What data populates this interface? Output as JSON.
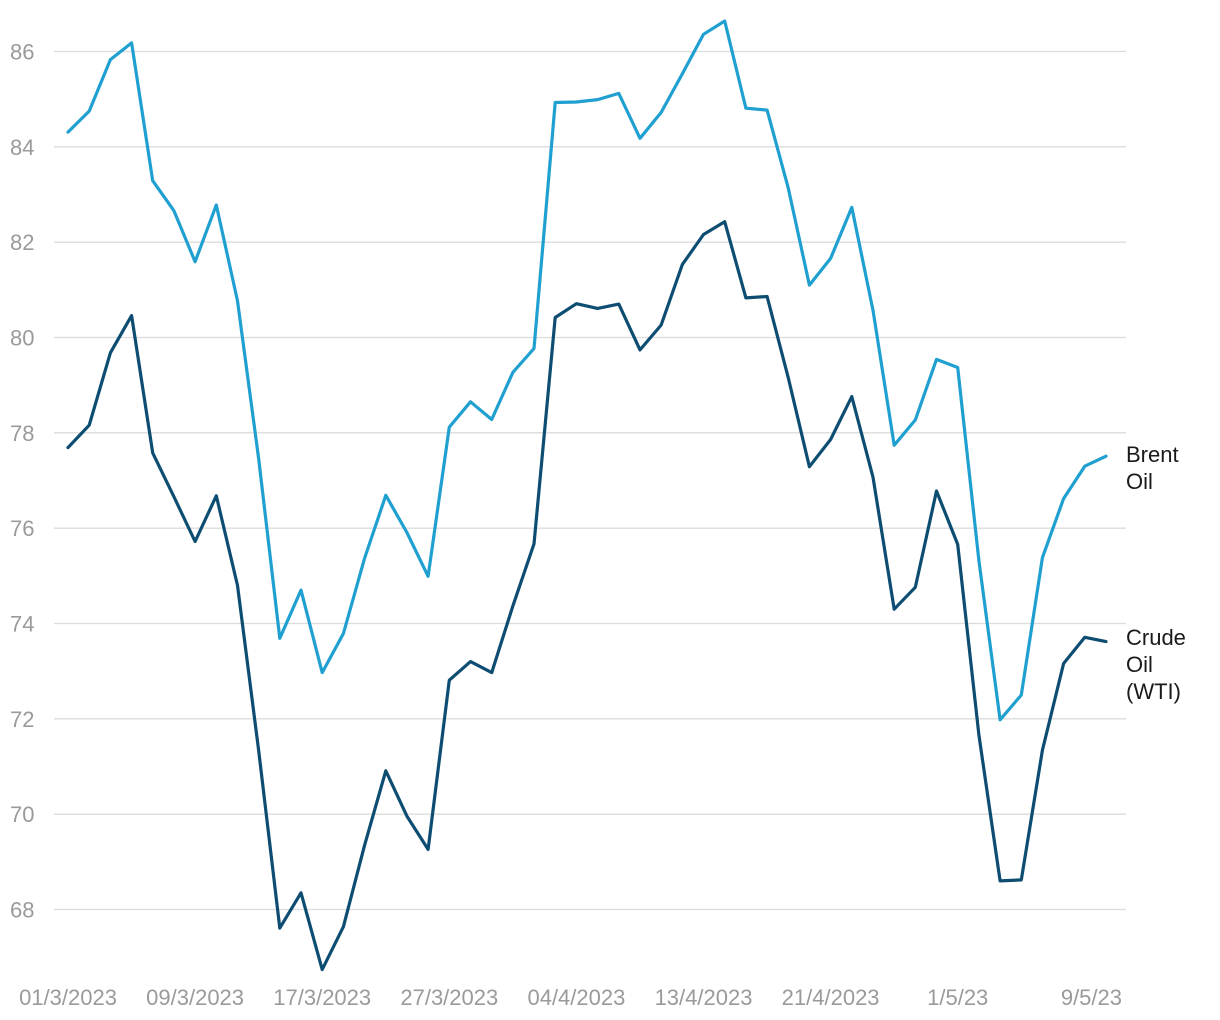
{
  "chart_data": {
    "type": "line",
    "title": "",
    "xlabel": "",
    "ylabel": "",
    "ylim": [
      66.7,
      86.9
    ],
    "y_ticks": [
      68,
      70,
      72,
      74,
      76,
      78,
      80,
      82,
      84,
      86
    ],
    "grid": "horizontal",
    "x_tick_labels": [
      "01/3/2023",
      "09/3/2023",
      "17/3/2023",
      "27/3/2023",
      "04/4/2023",
      "13/4/2023",
      "21/4/2023",
      "1/5/23",
      "9/5/23"
    ],
    "x_tick_index": [
      0,
      6,
      12,
      18,
      24,
      30,
      36,
      42,
      48
    ],
    "series": [
      {
        "name": "Brent Oil",
        "label_lines": [
          "Brent",
          "Oil"
        ],
        "color": "#1fa0d0",
        "values": [
          84.31,
          84.75,
          85.83,
          86.18,
          83.29,
          82.66,
          81.59,
          82.78,
          80.77,
          77.45,
          73.69,
          74.7,
          72.97,
          73.79,
          75.37,
          76.69,
          75.91,
          74.99,
          78.12,
          78.65,
          78.28,
          79.27,
          79.77,
          84.93,
          84.94,
          84.99,
          85.12,
          84.18,
          84.72,
          85.53,
          86.36,
          86.64,
          84.81,
          84.77,
          83.14,
          81.1,
          81.66,
          82.73,
          80.57,
          77.74,
          78.27,
          79.54,
          79.37,
          75.32,
          71.98,
          72.5,
          75.38,
          76.62,
          77.3,
          77.51
        ]
      },
      {
        "name": "Crude Oil (WTI)",
        "label_lines": [
          "Crude",
          "Oil",
          "(WTI)"
        ],
        "color": "#0e4d72",
        "values": [
          77.69,
          78.16,
          79.68,
          80.46,
          77.58,
          76.66,
          75.72,
          76.68,
          74.8,
          71.33,
          67.61,
          68.35,
          66.74,
          67.64,
          69.35,
          70.91,
          69.96,
          69.26,
          72.81,
          73.2,
          72.97,
          74.37,
          75.67,
          80.42,
          80.71,
          80.61,
          80.7,
          79.74,
          80.26,
          81.53,
          82.16,
          82.43,
          80.83,
          80.86,
          79.16,
          77.29,
          77.86,
          78.76,
          77.07,
          74.3,
          74.76,
          76.78,
          75.66,
          71.66,
          68.6,
          68.62,
          71.34,
          73.16,
          73.71,
          73.62
        ]
      }
    ]
  }
}
